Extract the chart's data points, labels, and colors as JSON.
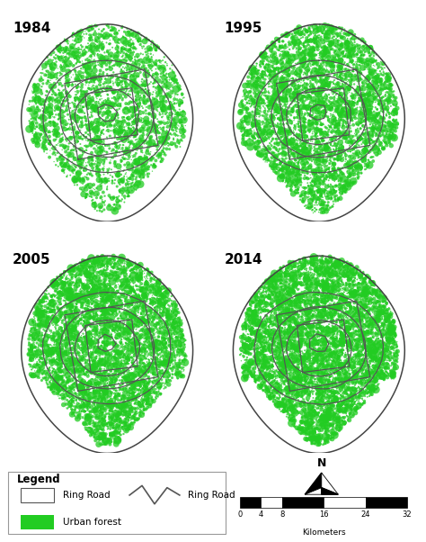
{
  "years": [
    "1984",
    "1995",
    "2005",
    "2014"
  ],
  "green_color": "#22cc22",
  "ring_color": "#555555",
  "bg_color": "#ffffff",
  "n_green_dots": [
    3000,
    4500,
    5500,
    6500
  ],
  "seeds": [
    101,
    202,
    303,
    404
  ],
  "scale_bar_ticks": [
    0,
    4,
    8,
    16,
    24,
    32
  ],
  "scale_bar_unit": "Kilometers"
}
